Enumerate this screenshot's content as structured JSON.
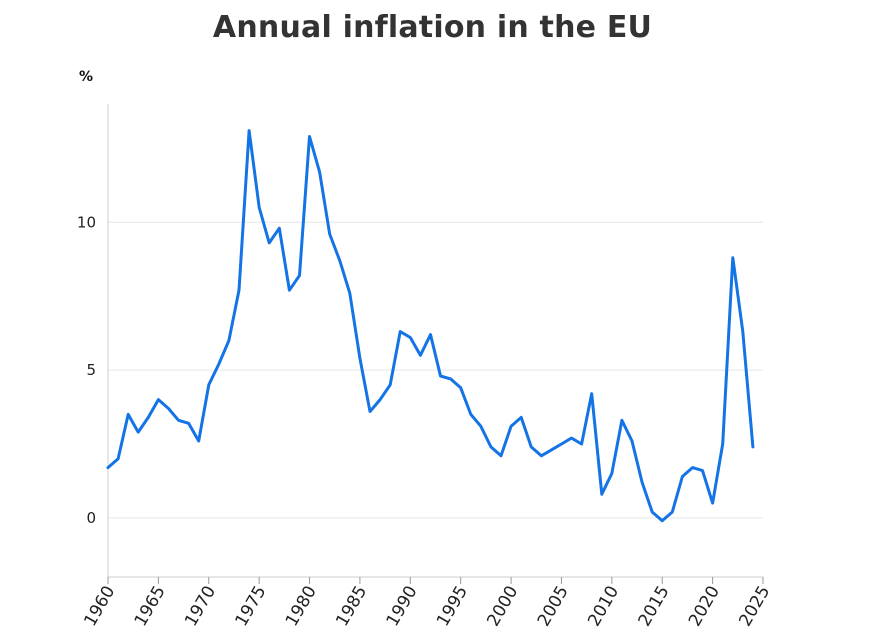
{
  "chart_data": {
    "type": "line",
    "title": "Annual inflation in the EU",
    "y_unit": "%",
    "xlabel": "",
    "ylabel": "",
    "xlim": [
      1960,
      2025
    ],
    "ylim": [
      -2,
      14
    ],
    "y_ticks": [
      0,
      5,
      10
    ],
    "x_ticks": [
      1960,
      1965,
      1970,
      1975,
      1980,
      1985,
      1990,
      1995,
      2000,
      2005,
      2010,
      2015,
      2020,
      2025
    ],
    "grid": "horizontal",
    "line_color": "#1474e6",
    "series": [
      {
        "x": [
          1960,
          1961,
          1962,
          1963,
          1964,
          1965,
          1966,
          1967,
          1968,
          1969,
          1970,
          1971,
          1972,
          1973,
          1974,
          1975,
          1976,
          1977,
          1978,
          1979,
          1980,
          1981,
          1982,
          1983,
          1984,
          1985,
          1986,
          1987,
          1988,
          1989,
          1990,
          1991,
          1992,
          1993,
          1994,
          1995,
          1996,
          1997,
          1998,
          1999,
          2000,
          2001,
          2002,
          2003,
          2004,
          2005,
          2006,
          2007,
          2008,
          2009,
          2010,
          2011,
          2012,
          2013,
          2014,
          2015,
          2016,
          2017,
          2018,
          2019,
          2020,
          2021,
          2022,
          2023,
          2024
        ],
        "y": [
          1.7,
          2.0,
          3.5,
          2.9,
          3.4,
          4.0,
          3.7,
          3.3,
          3.2,
          2.6,
          4.5,
          5.2,
          6.0,
          7.7,
          13.1,
          10.5,
          9.3,
          9.8,
          7.7,
          8.2,
          12.9,
          11.7,
          9.6,
          8.7,
          7.6,
          5.4,
          3.6,
          4.0,
          4.5,
          6.3,
          6.1,
          5.5,
          6.2,
          4.8,
          4.7,
          4.4,
          3.5,
          3.1,
          2.4,
          2.1,
          3.1,
          3.4,
          2.4,
          2.1,
          2.3,
          2.5,
          2.7,
          2.5,
          4.2,
          0.8,
          1.5,
          3.3,
          2.6,
          1.2,
          0.2,
          -0.1,
          0.2,
          1.4,
          1.7,
          1.6,
          0.5,
          2.5,
          8.8,
          6.3,
          2.4
        ]
      }
    ]
  }
}
